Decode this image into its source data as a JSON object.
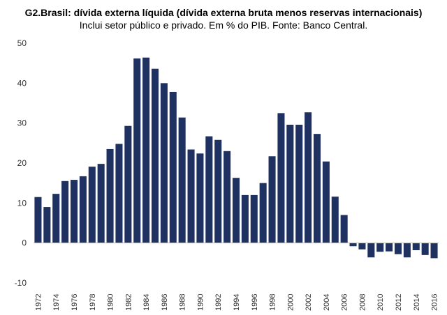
{
  "chart_data": {
    "type": "bar",
    "title": "G2.Brasil: dívida externa líquida (dívida externa bruta menos reservas internacionais)",
    "subtitle": "Inclui setor público e privado.  Em % do PIB. Fonte: Banco Central.",
    "xlabel": "",
    "ylabel": "",
    "ylim": [
      -10,
      50
    ],
    "yticks": [
      -10,
      0,
      10,
      20,
      30,
      40,
      50
    ],
    "grid": false,
    "legend": "none",
    "bar_color": "#1f3160",
    "categories": [
      "1972",
      "1973",
      "1974",
      "1975",
      "1976",
      "1977",
      "1978",
      "1979",
      "1980",
      "1981",
      "1982",
      "1983",
      "1984",
      "1985",
      "1986",
      "1987",
      "1988",
      "1989",
      "1990",
      "1991",
      "1992",
      "1993",
      "1994",
      "1995",
      "1996",
      "1997",
      "1998",
      "1999",
      "2000",
      "2001",
      "2002",
      "2003",
      "2004",
      "2005",
      "2006",
      "2007",
      "2008",
      "2009",
      "2010",
      "2011",
      "2012",
      "2013",
      "2014",
      "2015",
      "2016"
    ],
    "tick_labels": [
      "1972",
      "1974",
      "1976",
      "1978",
      "1980",
      "1982",
      "1984",
      "1986",
      "1988",
      "1990",
      "1992",
      "1994",
      "1996",
      "1998",
      "2000",
      "2002",
      "2004",
      "2006",
      "2008",
      "2010",
      "2012",
      "2014",
      "2016"
    ],
    "values": [
      11.5,
      9.0,
      12.3,
      15.5,
      15.8,
      16.7,
      19.1,
      19.8,
      23.5,
      24.8,
      29.3,
      46.2,
      46.4,
      43.6,
      40.0,
      37.8,
      31.4,
      23.4,
      22.4,
      26.7,
      25.8,
      23.0,
      16.3,
      12.0,
      12.0,
      15.0,
      21.7,
      32.5,
      29.6,
      29.6,
      32.7,
      27.3,
      20.4,
      11.6,
      7.0,
      -0.8,
      -1.6,
      -3.6,
      -2.2,
      -2.1,
      -2.8,
      -3.6,
      -1.8,
      -3.0,
      -3.8
    ]
  }
}
